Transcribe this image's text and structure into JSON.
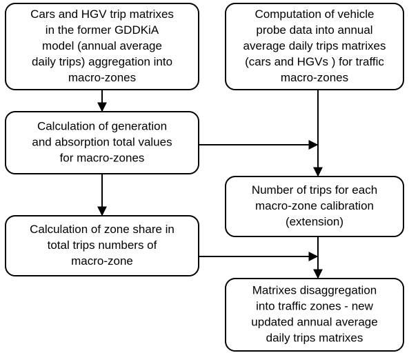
{
  "nodes": [
    {
      "lines": [
        "Cars and HGV trip matrixes",
        "in the former GDDKiA",
        "model (annual average",
        "daily trips) aggregation into",
        "macro-zones"
      ]
    },
    {
      "lines": [
        "Computation of vehicle",
        "probe data into annual",
        "average daily trips matrixes",
        "(cars and HGVs ) for traffic",
        "macro-zones"
      ]
    },
    {
      "lines": [
        "Calculation of generation",
        "and absorption total values",
        "for macro-zones"
      ]
    },
    {
      "lines": [
        "Number of trips for each",
        "macro-zone calibration",
        "(extension)"
      ]
    },
    {
      "lines": [
        "Calculation of zone share in",
        "total trips numbers of",
        "macro-zone"
      ]
    },
    {
      "lines": [
        "Matrixes disaggregation",
        "into traffic zones -  new",
        "updated annual average",
        "daily trips matrixes"
      ]
    }
  ]
}
